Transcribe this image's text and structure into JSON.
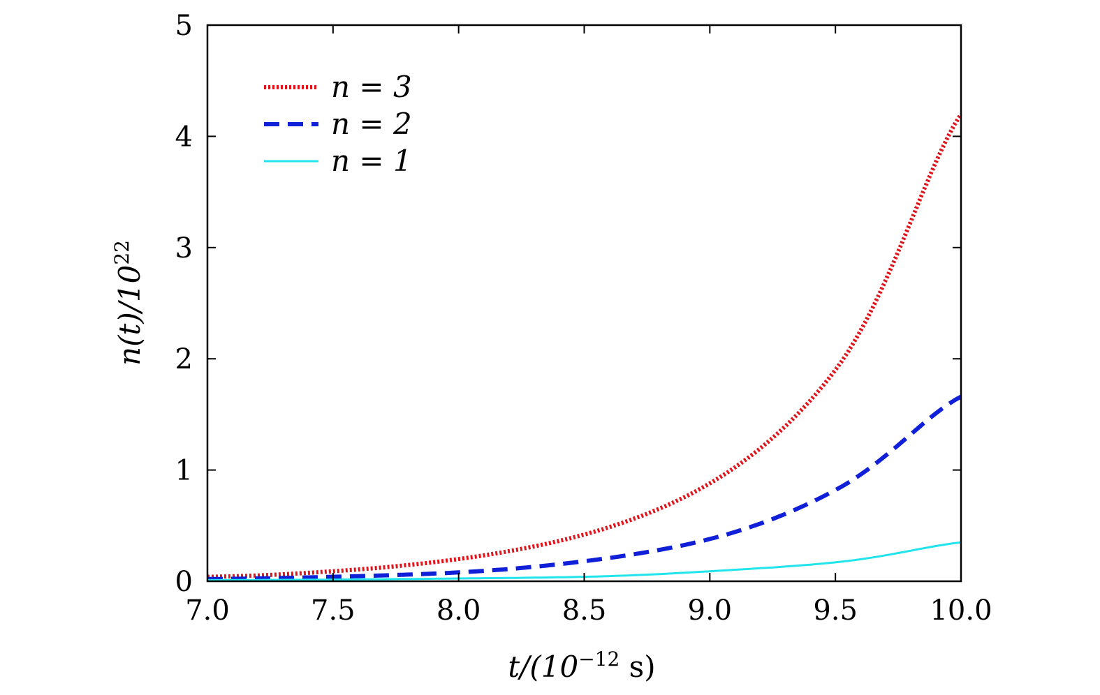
{
  "chart_data": {
    "type": "line",
    "xlabel": {
      "base": "t/(10",
      "exp": "−12",
      "unit": " s)"
    },
    "ylabel": {
      "base": "n(t)/10",
      "exp": "22"
    },
    "xlim": [
      7.0,
      10.0
    ],
    "ylim": [
      0,
      5
    ],
    "xticks": [
      "7.0",
      "7.5",
      "8.0",
      "8.5",
      "9.0",
      "9.5",
      "10.0"
    ],
    "yticks": [
      "0",
      "1",
      "2",
      "3",
      "4",
      "5"
    ],
    "grid": false,
    "legend_position": "top-left",
    "x": [
      7.0,
      7.5,
      8.0,
      8.5,
      9.0,
      9.5,
      10.0
    ],
    "series": [
      {
        "name": "n = 3",
        "values": [
          0.04,
          0.09,
          0.2,
          0.42,
          0.88,
          1.9,
          4.2
        ],
        "color": "#e0151b",
        "style": "dotted"
      },
      {
        "name": "n = 2",
        "values": [
          0.02,
          0.04,
          0.08,
          0.18,
          0.38,
          0.82,
          1.66
        ],
        "color": "#1020d8",
        "style": "dashed"
      },
      {
        "name": "n = 1",
        "values": [
          0.01,
          0.015,
          0.025,
          0.04,
          0.09,
          0.17,
          0.35
        ],
        "color": "#22e4ec",
        "style": "solid"
      }
    ]
  }
}
